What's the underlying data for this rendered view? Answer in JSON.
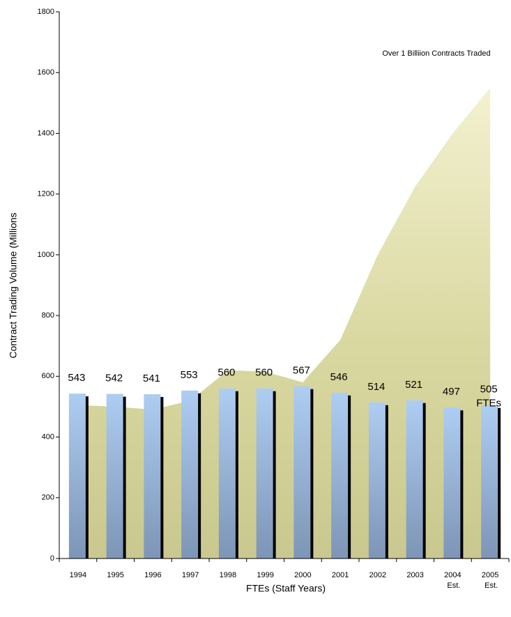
{
  "chart_data": {
    "type": "bar",
    "categories": [
      "1994",
      "1995",
      "1996",
      "1997",
      "1998",
      "1999",
      "2000",
      "2001",
      "2002",
      "2003",
      "2004 Est.",
      "2005 Est."
    ],
    "series": [
      {
        "type": "area",
        "color": "#dcdba5",
        "values": [
          505,
          500,
          490,
          520,
          620,
          615,
          580,
          720,
          1000,
          1225,
          1400,
          1550
        ]
      },
      {
        "type": "bar",
        "color": "#a9c9ef",
        "values": [
          543,
          542,
          541,
          553,
          560,
          560,
          567,
          546,
          514,
          521,
          497,
          505
        ]
      }
    ],
    "ylim": [
      0,
      1800
    ],
    "yticks": [
      0,
      200,
      400,
      600,
      800,
      1000,
      1200,
      1400,
      1600,
      1800
    ],
    "y_label": "Contract Trading Volume (Millions",
    "x_label": "FTEs (Staff Years)",
    "annotations": [
      "Over 1 Billiion Contracts Traded",
      "FTEs"
    ]
  }
}
